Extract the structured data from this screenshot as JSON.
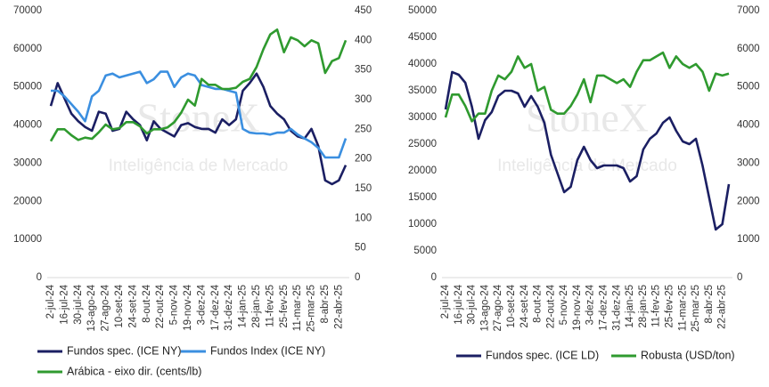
{
  "chart_data": [
    {
      "type": "line",
      "watermark": "StoneX",
      "watermark_subtitle": "Inteligência de Mercado",
      "categories": [
        "2-jul-24",
        null,
        "16-jul-24",
        null,
        "30-jul-24",
        null,
        "13-ago-24",
        null,
        "27-ago-24",
        null,
        "10-set-24",
        null,
        "24-set-24",
        null,
        "8-out-24",
        null,
        "22-out-24",
        null,
        "5-nov-24",
        null,
        "19-nov-24",
        null,
        "3-dez-24",
        null,
        "17-dez-24",
        null,
        "31-dez-24",
        null,
        "14-jan-25",
        null,
        "28-jan-25",
        null,
        "11-fev-25",
        null,
        "25-fev-25",
        null,
        "11-mar-25",
        null,
        "25-mar-25",
        null,
        "8-abr-25",
        null,
        "22-abr-25",
        null
      ],
      "ylim": [
        0,
        70000
      ],
      "yticks": [
        0,
        10000,
        20000,
        30000,
        40000,
        50000,
        60000,
        70000
      ],
      "y2lim": [
        0,
        450
      ],
      "y2ticks": [
        0,
        50,
        100,
        150,
        200,
        250,
        300,
        350,
        400,
        450
      ],
      "grid": false,
      "legend": "bottom",
      "series": [
        {
          "name": "Fundos spec. (ICE NY)",
          "color": "#1b1f63",
          "values": [
            45000,
            51000,
            47000,
            43000,
            41000,
            39500,
            38500,
            43500,
            43000,
            38500,
            39000,
            43500,
            41500,
            40000,
            36000,
            41000,
            39000,
            38000,
            37000,
            40000,
            40500,
            39500,
            39000,
            39000,
            38000,
            41500,
            40000,
            41500,
            49000,
            51000,
            53500,
            50000,
            45000,
            43000,
            41500,
            38500,
            37000,
            36500,
            39000,
            34500,
            25500,
            24500,
            25500,
            29500
          ]
        },
        {
          "name": "Fundos Index (ICE NY)",
          "color": "#3b8fe0",
          "values": [
            49000,
            49000,
            47500,
            45500,
            43500,
            41000,
            47500,
            49000,
            53000,
            53500,
            52500,
            53000,
            53500,
            54000,
            51000,
            52000,
            54000,
            54000,
            50000,
            52500,
            53500,
            53000,
            50500,
            50000,
            49500,
            49500,
            49000,
            48500,
            39000,
            38000,
            37800,
            37800,
            37500,
            38000,
            38000,
            39000,
            37500,
            36500,
            35500,
            34000,
            31500,
            31500,
            31500,
            36500
          ]
        },
        {
          "name": "Arábica - eixo dir. (cents/lb)",
          "color": "#2f9a2f",
          "axis": "y2",
          "values": [
            230,
            250,
            250,
            240,
            232,
            236,
            234,
            245,
            258,
            250,
            252,
            262,
            262,
            255,
            243,
            250,
            250,
            253,
            262,
            278,
            300,
            290,
            335,
            325,
            325,
            318,
            318,
            320,
            330,
            335,
            355,
            385,
            410,
            418,
            380,
            405,
            400,
            390,
            400,
            395,
            345,
            365,
            370,
            400
          ]
        }
      ]
    },
    {
      "type": "line",
      "watermark": "StoneX",
      "watermark_subtitle": "Inteligência de Mercado",
      "categories": [
        "2-jul-24",
        null,
        "16-jul-24",
        null,
        "30-jul-24",
        null,
        "13-ago-24",
        null,
        "27-ago-24",
        null,
        "10-set-24",
        null,
        "24-set-24",
        null,
        "8-out-24",
        null,
        "22-out-24",
        null,
        "5-nov-24",
        null,
        "19-nov-24",
        null,
        "3-dez-24",
        null,
        "17-dez-24",
        null,
        "31-dez-24",
        null,
        "14-jan-25",
        null,
        "28-jan-25",
        null,
        "11-fev-25",
        null,
        "25-fev-25",
        null,
        "11-mar-25",
        null,
        "25-mar-25",
        null,
        "8-abr-25",
        null,
        "22-abr-25",
        null
      ],
      "ylim": [
        0,
        50000
      ],
      "yticks": [
        0,
        5000,
        10000,
        15000,
        20000,
        25000,
        30000,
        35000,
        40000,
        45000,
        50000
      ],
      "y2lim": [
        0,
        7000
      ],
      "y2ticks": [
        0,
        1000,
        2000,
        3000,
        4000,
        5000,
        6000,
        7000
      ],
      "grid": false,
      "legend": "bottom",
      "series": [
        {
          "name": "Fundos spec. (ICE LD)",
          "color": "#1b1f63",
          "values": [
            31500,
            38500,
            38000,
            36500,
            32000,
            26000,
            29500,
            31000,
            34000,
            35000,
            35000,
            34500,
            32000,
            34000,
            32000,
            29000,
            23000,
            19500,
            16000,
            17000,
            22000,
            24500,
            22000,
            20500,
            21000,
            21000,
            21000,
            20500,
            18000,
            19000,
            24000,
            26000,
            27000,
            29000,
            30000,
            27500,
            25500,
            25000,
            26000,
            21000,
            15000,
            9000,
            10000,
            17500
          ]
        },
        {
          "name": "Robusta (USD/ton)",
          "color": "#2f9a2f",
          "axis": "y2",
          "values": [
            4200,
            4800,
            4800,
            4500,
            4100,
            4300,
            4300,
            4900,
            5300,
            5200,
            5400,
            5800,
            5500,
            5600,
            4900,
            5000,
            4400,
            4300,
            4300,
            4500,
            4800,
            5200,
            4600,
            5300,
            5300,
            5200,
            5100,
            5200,
            5000,
            5400,
            5700,
            5700,
            5800,
            5900,
            5500,
            5800,
            5600,
            5500,
            5600,
            5400,
            4900,
            5350,
            5300,
            5350
          ]
        }
      ]
    }
  ]
}
